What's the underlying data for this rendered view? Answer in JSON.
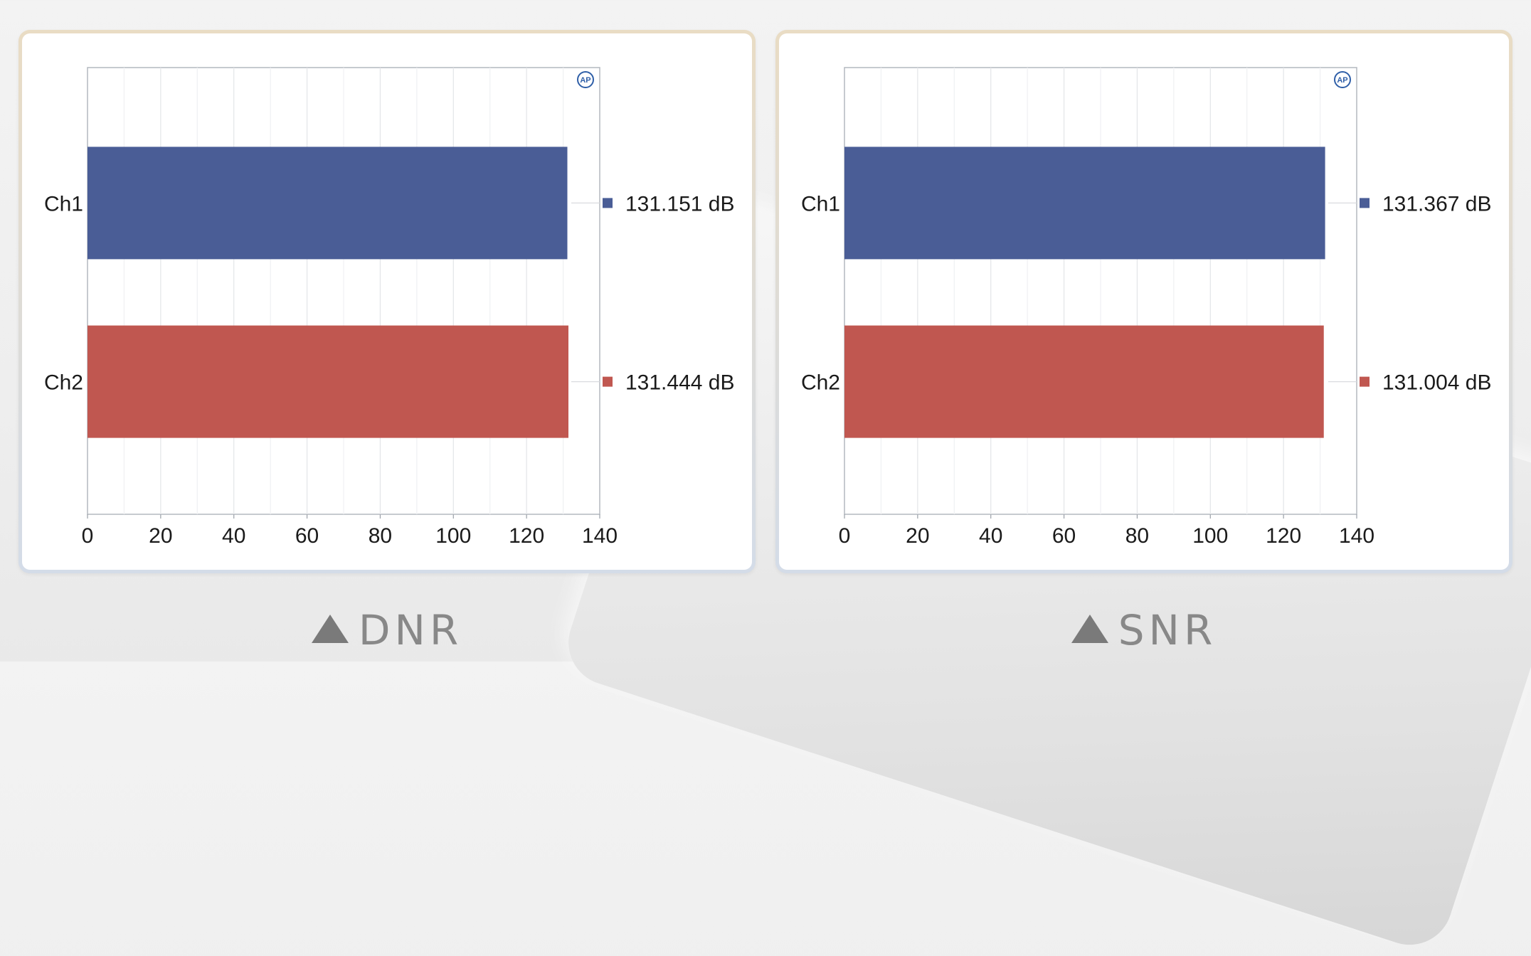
{
  "chart_data": [
    {
      "type": "bar",
      "orientation": "horizontal",
      "caption": "DNR",
      "categories": [
        "Ch1",
        "Ch2"
      ],
      "values": [
        131.151,
        131.444
      ],
      "value_labels": [
        "131.151 dB",
        "131.444 dB"
      ],
      "colors": [
        "#4a5d96",
        "#c05750"
      ],
      "xlim": [
        0,
        140
      ],
      "xticks": [
        0,
        20,
        40,
        60,
        80,
        100,
        120,
        140
      ],
      "xtick_labels": [
        "0",
        "20",
        "40",
        "60",
        "80",
        "100",
        "120",
        "140"
      ],
      "grid": true,
      "legend": "right"
    },
    {
      "type": "bar",
      "orientation": "horizontal",
      "caption": "SNR",
      "categories": [
        "Ch1",
        "Ch2"
      ],
      "values": [
        131.367,
        131.004
      ],
      "value_labels": [
        "131.367 dB",
        "131.004 dB"
      ],
      "colors": [
        "#4a5d96",
        "#c05750"
      ],
      "xlim": [
        0,
        140
      ],
      "xticks": [
        0,
        20,
        40,
        60,
        80,
        100,
        120,
        140
      ],
      "xtick_labels": [
        "0",
        "20",
        "40",
        "60",
        "80",
        "100",
        "120",
        "140"
      ],
      "grid": true,
      "legend": "right"
    }
  ],
  "logo_text": "AP"
}
